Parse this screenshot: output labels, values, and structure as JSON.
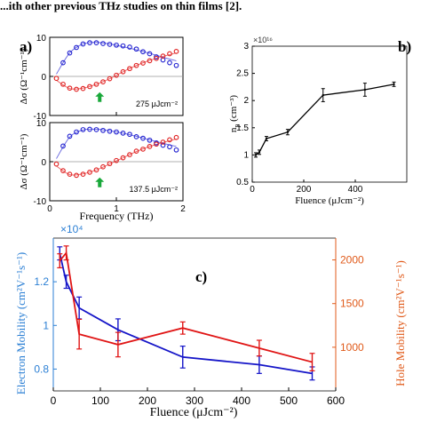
{
  "header_fragment": "...ith other previous THz studies on thin films [2].",
  "chart_data": [
    {
      "panel": "a",
      "panel_label": "a)",
      "type": "scatter",
      "subplots": [
        {
          "annotation": "275 μJcm⁻²",
          "ylabel": "Δσ (Ω⁻¹cm⁻¹)",
          "xlim": [
            0,
            2
          ],
          "ylim": [
            -10,
            10
          ],
          "yticks": [
            "10",
            "0",
            "-10"
          ],
          "series": [
            {
              "name": "",
              "color": "#1f1fd0",
              "x": [
                0.2,
                0.3,
                0.4,
                0.5,
                0.6,
                0.7,
                0.8,
                0.9,
                1.0,
                1.1,
                1.2,
                1.3,
                1.4,
                1.5,
                1.6,
                1.7,
                1.8,
                1.9
              ],
              "values": [
                3.5,
                6.0,
                7.4,
                8.3,
                8.6,
                8.6,
                8.4,
                8.2,
                8.0,
                7.8,
                7.5,
                7.0,
                6.3,
                5.8,
                5.0,
                4.2,
                3.5,
                2.8
              ]
            },
            {
              "name": "",
              "color": "#e02020",
              "x": [
                0.1,
                0.2,
                0.3,
                0.4,
                0.5,
                0.6,
                0.7,
                0.8,
                0.9,
                1.0,
                1.1,
                1.2,
                1.3,
                1.4,
                1.5,
                1.6,
                1.7,
                1.8,
                1.9
              ],
              "values": [
                -0.5,
                -2.0,
                -3.0,
                -3.3,
                -3.1,
                -2.6,
                -2.0,
                -1.4,
                -0.6,
                0.3,
                1.2,
                2.0,
                2.8,
                3.4,
                4.0,
                4.6,
                5.2,
                5.8,
                6.4
              ]
            }
          ],
          "fit_lines": [
            {
              "color": "#1f1fd0",
              "x": [
                0.1,
                0.3,
                0.5,
                0.7,
                0.9,
                1.1,
                1.3,
                1.5,
                1.7,
                1.9
              ],
              "values": [
                0.6,
                6.0,
                8.3,
                8.7,
                8.3,
                7.6,
                6.8,
                5.9,
                4.9,
                4.0
              ]
            },
            {
              "color": "#e02020",
              "x": [
                0.1,
                0.3,
                0.5,
                0.7,
                0.9,
                1.1,
                1.3,
                1.5,
                1.7,
                1.9
              ],
              "values": [
                -1.0,
                -3.1,
                -3.0,
                -2.0,
                -0.6,
                1.2,
                2.8,
                4.1,
                5.1,
                6.0
              ]
            }
          ],
          "arrow_x": 0.75
        },
        {
          "annotation": "137.5 μJcm⁻²",
          "ylabel": "Δσ (Ω⁻¹cm⁻¹)",
          "xlim": [
            0,
            2
          ],
          "ylim": [
            -10,
            10
          ],
          "yticks": [
            "10",
            "0",
            "-10"
          ],
          "xticks": [
            "0",
            "1",
            "2"
          ],
          "xlabel": "Frequency (THz)",
          "series": [
            {
              "name": "",
              "color": "#1f1fd0",
              "x": [
                0.2,
                0.3,
                0.4,
                0.5,
                0.6,
                0.7,
                0.8,
                0.9,
                1.0,
                1.1,
                1.2,
                1.3,
                1.4,
                1.5,
                1.6,
                1.7,
                1.8,
                1.9
              ],
              "values": [
                4.0,
                6.5,
                7.6,
                8.2,
                8.3,
                8.2,
                8.0,
                7.8,
                7.6,
                7.3,
                7.0,
                6.4,
                6.0,
                5.5,
                4.8,
                4.2,
                3.8,
                3.0
              ]
            },
            {
              "name": "",
              "color": "#e02020",
              "x": [
                0.1,
                0.2,
                0.3,
                0.4,
                0.5,
                0.6,
                0.7,
                0.8,
                0.9,
                1.0,
                1.1,
                1.2,
                1.3,
                1.4,
                1.5,
                1.6,
                1.7,
                1.8,
                1.9
              ],
              "values": [
                -0.6,
                -2.3,
                -3.2,
                -3.5,
                -3.2,
                -2.7,
                -2.1,
                -1.3,
                -0.5,
                0.3,
                1.0,
                1.8,
                2.7,
                3.2,
                3.9,
                4.5,
                5.0,
                5.6,
                6.2
              ]
            }
          ],
          "fit_lines": [
            {
              "color": "#1f1fd0",
              "x": [
                0.1,
                0.3,
                0.5,
                0.7,
                0.9,
                1.1,
                1.3,
                1.5,
                1.7,
                1.9
              ],
              "values": [
                0.8,
                6.3,
                8.1,
                8.3,
                7.9,
                7.3,
                6.5,
                5.6,
                4.7,
                3.9
              ]
            },
            {
              "color": "#e02020",
              "x": [
                0.1,
                0.3,
                0.5,
                0.7,
                0.9,
                1.1,
                1.3,
                1.5,
                1.7,
                1.9
              ],
              "values": [
                -1.1,
                -3.3,
                -3.1,
                -2.1,
                -0.6,
                1.0,
                2.6,
                3.9,
                4.9,
                5.8
              ]
            }
          ],
          "arrow_x": 0.75
        }
      ]
    },
    {
      "panel": "b",
      "panel_label": "b)",
      "type": "line",
      "ylabel": "n_p (cm⁻³)",
      "ylabel_main": "n",
      "ylabel_sub": "p",
      "ylabel_unit": " (cm⁻³)",
      "xlabel": "Fluence (μJcm⁻²)",
      "exponent_label": "×10¹⁶",
      "xlim": [
        0,
        600
      ],
      "ylim": [
        0.5,
        3
      ],
      "xticks": [
        "0",
        "200",
        "400"
      ],
      "yticks": [
        "0.5",
        "1",
        "1.5",
        "2",
        "2.5",
        "3"
      ],
      "series": [
        {
          "name": "",
          "color": "#000000",
          "x": [
            13.75,
            27.5,
            55,
            137.5,
            275,
            437.5,
            550
          ],
          "values": [
            1.0,
            1.05,
            1.3,
            1.42,
            2.1,
            2.2,
            2.3
          ],
          "errors": [
            0.04,
            0.04,
            0.04,
            0.05,
            0.12,
            0.12,
            0.04
          ]
        }
      ]
    },
    {
      "panel": "c",
      "panel_label": "c)",
      "type": "line",
      "xlabel": "Fluence (μJcm⁻²)",
      "ylabel_left": "Electron Mobility (cm²V⁻¹s⁻¹)",
      "ylabel_right": "Hole Mobility (cm²V⁻¹s⁻¹)",
      "exponent_label": "×10⁴",
      "xlim": [
        0,
        600
      ],
      "ylim_left": [
        0.7,
        1.4
      ],
      "ylim_right": [
        500,
        2250
      ],
      "xticks": [
        "0",
        "100",
        "200",
        "300",
        "400",
        "500",
        "600"
      ],
      "yticks_left": [
        "0.8",
        "1",
        "1.2"
      ],
      "yticks_right": [
        "1000",
        "1500",
        "2000"
      ],
      "left_color": "#2b7fd4",
      "right_color": "#e05a1a",
      "series": [
        {
          "name": "",
          "axis": "left",
          "color": "#1515c8",
          "x": [
            13.75,
            27.5,
            55,
            137.5,
            275,
            437.5,
            550
          ],
          "values": [
            1.33,
            1.2,
            1.08,
            0.98,
            0.855,
            0.82,
            0.78
          ],
          "errors": [
            0.03,
            0.03,
            0.05,
            0.05,
            0.05,
            0.04,
            0.03
          ]
        },
        {
          "name": "",
          "axis": "right",
          "color": "#e01515",
          "x": [
            13.75,
            27.5,
            55,
            137.5,
            275,
            437.5,
            550
          ],
          "values": [
            1990,
            2080,
            1150,
            1030,
            1220,
            990,
            830
          ],
          "errors": [
            80,
            80,
            170,
            140,
            70,
            90,
            100
          ]
        }
      ]
    }
  ]
}
